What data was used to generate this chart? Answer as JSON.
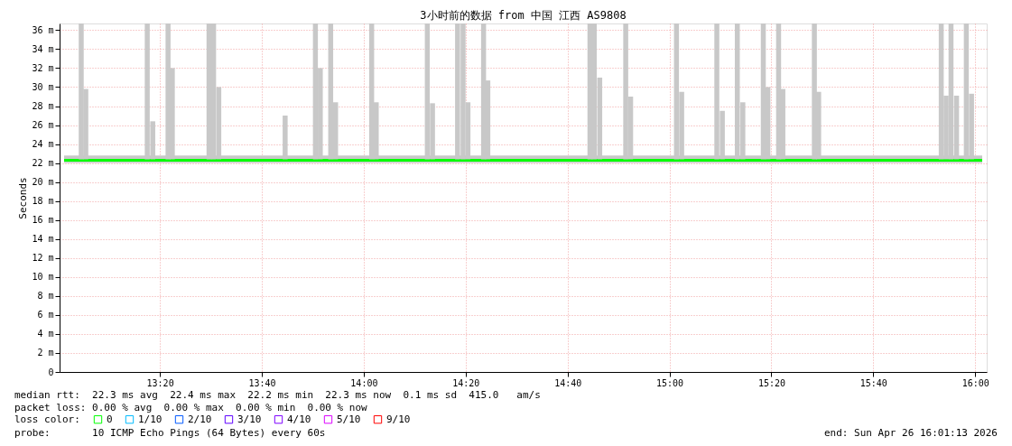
{
  "chart_data": {
    "type": "bar",
    "title": "3小时前的数据 from 中国 江西 AS9808",
    "ylabel": "Seconds",
    "xlim": [
      13.02,
      16.023
    ],
    "ylim": [
      0,
      36.7
    ],
    "xticks": [
      {
        "value": 13.3333,
        "label": "13:20"
      },
      {
        "value": 13.6667,
        "label": "13:40"
      },
      {
        "value": 14,
        "label": "14:00"
      },
      {
        "value": 14.3333,
        "label": "14:20"
      },
      {
        "value": 14.6667,
        "label": "14:40"
      },
      {
        "value": 15,
        "label": "15:00"
      },
      {
        "value": 15.3333,
        "label": "15:20"
      },
      {
        "value": 15.6667,
        "label": "15:40"
      },
      {
        "value": 16,
        "label": "16:00"
      }
    ],
    "yticks": [
      0,
      {
        "value": 2,
        "label": "2 m"
      },
      {
        "value": 4,
        "label": "4 m"
      },
      {
        "value": 6,
        "label": "6 m"
      },
      {
        "value": 8,
        "label": "8 m"
      },
      {
        "value": 10,
        "label": "10 m"
      },
      {
        "value": 12,
        "label": "12 m"
      },
      {
        "value": 14,
        "label": "14 m"
      },
      {
        "value": 16,
        "label": "16 m"
      },
      {
        "value": 18,
        "label": "18 m"
      },
      {
        "value": 20,
        "label": "20 m"
      },
      {
        "value": 22,
        "label": "22 m"
      },
      {
        "value": 24,
        "label": "24 m"
      },
      {
        "value": 26,
        "label": "26 m"
      },
      {
        "value": 28,
        "label": "28 m"
      },
      {
        "value": 30,
        "label": "30 m"
      },
      {
        "value": 32,
        "label": "32 m"
      },
      {
        "value": 34,
        "label": "34 m"
      },
      {
        "value": 36,
        "label": "36 m"
      }
    ],
    "grid": true,
    "legend": "bottom left",
    "legend_title": "loss color:",
    "series": [
      {
        "type": "line",
        "name": "0",
        "color": "#00ff00",
        "line_style": "solid",
        "x": [
          13.02,
          13.25,
          13.5,
          13.75,
          14.0,
          14.25,
          14.5,
          14.75,
          15.0,
          15.25,
          15.5,
          15.75,
          16.023
        ],
        "values": [
          22.3,
          22.3,
          22.3,
          22.3,
          22.3,
          22.3,
          22.3,
          22.3,
          22.3,
          22.3,
          22.3,
          22.3,
          22.3
        ],
        "lower": [
          22.0,
          22.0,
          22.0,
          22.0,
          22.0,
          22.0,
          22.0,
          22.0,
          22.0,
          22.0,
          22.0,
          22.0,
          22.0
        ],
        "upper": [
          22.8,
          22.8,
          22.8,
          22.8,
          22.8,
          22.8,
          22.8,
          22.8,
          22.8,
          22.8,
          22.8,
          22.8,
          22.8
        ]
      },
      {
        "color": "#c8c8c8",
        "x": [
          13.076,
          13.091,
          13.292,
          13.31,
          13.36,
          13.374,
          13.494,
          13.509,
          13.526,
          13.743,
          13.842,
          13.858,
          13.892,
          13.908,
          14.026,
          14.041,
          14.208,
          14.225,
          14.307,
          14.325,
          14.341,
          14.392,
          14.406,
          14.74,
          14.754,
          14.772,
          14.857,
          14.873,
          15.023,
          15.04,
          15.155,
          15.173,
          15.222,
          15.24,
          15.307,
          15.322,
          15.357,
          15.371,
          15.474,
          15.488,
          15.889,
          15.905,
          15.921,
          15.939,
          15.971,
          15.988
        ],
        "base": [
          22.4,
          22.4,
          22.4,
          22.4,
          22.4,
          22.4,
          22.4,
          22.4,
          22.4,
          22.4,
          22.4,
          22.4,
          22.4,
          22.4,
          22.4,
          22.4,
          22.4,
          22.4,
          22.4,
          22.4,
          22.4,
          22.4,
          22.4,
          22.4,
          22.4,
          22.4,
          22.4,
          22.4,
          22.4,
          22.4,
          22.4,
          22.4,
          22.4,
          22.4,
          22.4,
          22.4,
          22.4,
          22.4,
          22.4,
          22.4,
          22.4,
          22.4,
          22.4,
          22.4,
          22.4,
          22.4
        ],
        "values": [
          14.3,
          7.4,
          14.3,
          4.0,
          14.3,
          9.6,
          14.3,
          14.3,
          7.6,
          4.6,
          14.3,
          9.6,
          14.3,
          6.0,
          14.3,
          6.0,
          14.3,
          5.9,
          14.3,
          14.3,
          6.0,
          14.3,
          8.3,
          14.3,
          14.3,
          8.6,
          14.3,
          6.6,
          14.3,
          7.1,
          14.3,
          5.1,
          14.3,
          6.0,
          14.3,
          7.6,
          14.3,
          7.4,
          14.3,
          7.1,
          14.3,
          6.7,
          14.3,
          6.7,
          14.3,
          6.9
        ]
      },
      {
        "type": "line",
        "name": "1/10",
        "color": "#00bbff"
      },
      {
        "type": "line",
        "name": "2/10",
        "color": "#0059ff"
      },
      {
        "type": "line",
        "name": "3/10",
        "color": "#5e00ff"
      },
      {
        "type": "line",
        "name": "4/10",
        "color": "#7e00ff"
      },
      {
        "type": "line",
        "name": "5/10",
        "color": "#dd00ff"
      },
      {
        "type": "line",
        "name": "9/10",
        "color": "#ff0000"
      }
    ],
    "annotations": [
      "median rtt:  22.3 ms avg  22.4 ms max  22.2 ms min  22.3 ms now  0.1 ms sd  415.0   am/s",
      "packet loss: 0.00 % avg  0.00 % max  0.00 % min  0.00 % now",
      "probe:       10 ICMP Echo Pings (64 Bytes) every 60s",
      "end: Sun Apr 26 16:01:13 2026"
    ]
  }
}
